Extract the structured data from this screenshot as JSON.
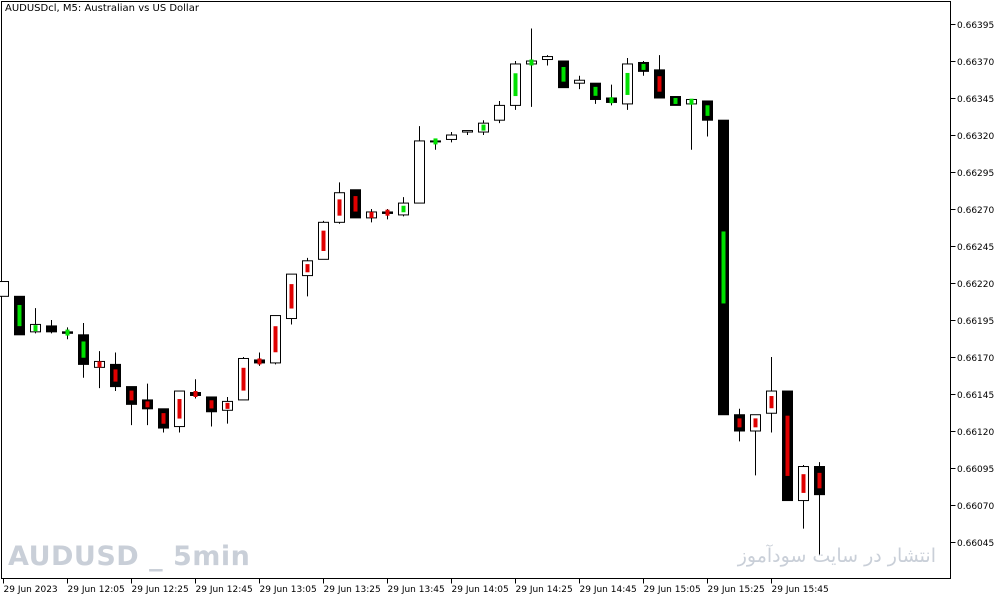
{
  "header": {
    "symbol": "AUDUSDcl",
    "timeframe": "M5",
    "description": "Australian vs US Dollar",
    "separator": ":  "
  },
  "watermarks": {
    "left": "AUDUSD _ 5min",
    "right": "انتشار در سایت سودآموز"
  },
  "colors": {
    "background": "#ffffff",
    "frame": "#000000",
    "bull_body": "#ffffff",
    "bear_body": "#000000",
    "marker_up": "#00e000",
    "marker_down": "#e00000",
    "watermark": "#c9cfd8"
  },
  "chart_data": {
    "type": "candlestick",
    "title": "AUDUSDcl, M5:  Australian vs US Dollar",
    "ylim": [
      0.66035,
      0.66415
    ],
    "y_ticks": [
      0.66395,
      0.6637,
      0.66345,
      0.6632,
      0.66295,
      0.6627,
      0.66245,
      0.6622,
      0.66195,
      0.6617,
      0.66145,
      0.6612,
      0.66095,
      0.6607,
      0.66045
    ],
    "x_ticks": [
      "29 Jun 2023",
      "29 Jun 12:05",
      "29 Jun 12:25",
      "29 Jun 12:45",
      "29 Jun 13:05",
      "29 Jun 13:25",
      "29 Jun 13:45",
      "29 Jun 14:05",
      "29 Jun 14:25",
      "29 Jun 14:45",
      "29 Jun 15:05",
      "29 Jun 15:25",
      "29 Jun 15:45"
    ],
    "candles": [
      {
        "o": 0.66211,
        "h": 0.66221,
        "l": 0.66211,
        "c": 0.66221,
        "m": "none"
      },
      {
        "o": 0.66211,
        "h": 0.66211,
        "l": 0.66185,
        "c": 0.66185,
        "m": "up"
      },
      {
        "o": 0.66187,
        "h": 0.66203,
        "l": 0.66186,
        "c": 0.66192,
        "m": "up"
      },
      {
        "o": 0.66191,
        "h": 0.66195,
        "l": 0.66186,
        "c": 0.66187,
        "m": "none"
      },
      {
        "o": 0.66187,
        "h": 0.6619,
        "l": 0.66182,
        "c": 0.66186,
        "m": "up"
      },
      {
        "o": 0.66185,
        "h": 0.66193,
        "l": 0.66156,
        "c": 0.66165,
        "m": "up"
      },
      {
        "o": 0.66163,
        "h": 0.66174,
        "l": 0.66149,
        "c": 0.66167,
        "m": "down"
      },
      {
        "o": 0.66165,
        "h": 0.66173,
        "l": 0.66147,
        "c": 0.6615,
        "m": "down"
      },
      {
        "o": 0.6615,
        "h": 0.6615,
        "l": 0.66124,
        "c": 0.66138,
        "m": "down"
      },
      {
        "o": 0.66141,
        "h": 0.66152,
        "l": 0.66124,
        "c": 0.66135,
        "m": "down"
      },
      {
        "o": 0.66135,
        "h": 0.66135,
        "l": 0.66119,
        "c": 0.66122,
        "m": "down"
      },
      {
        "o": 0.66123,
        "h": 0.66147,
        "l": 0.66119,
        "c": 0.66147,
        "m": "down"
      },
      {
        "o": 0.66146,
        "h": 0.66155,
        "l": 0.66142,
        "c": 0.66144,
        "m": "down"
      },
      {
        "o": 0.66143,
        "h": 0.66143,
        "l": 0.66123,
        "c": 0.66133,
        "m": "down"
      },
      {
        "o": 0.66134,
        "h": 0.66143,
        "l": 0.66125,
        "c": 0.6614,
        "m": "down"
      },
      {
        "o": 0.66141,
        "h": 0.6617,
        "l": 0.66141,
        "c": 0.66169,
        "m": "down"
      },
      {
        "o": 0.66168,
        "h": 0.66173,
        "l": 0.66164,
        "c": 0.66166,
        "m": "down"
      },
      {
        "o": 0.66166,
        "h": 0.66198,
        "l": 0.66165,
        "c": 0.66198,
        "m": "down"
      },
      {
        "o": 0.66196,
        "h": 0.66226,
        "l": 0.66192,
        "c": 0.66226,
        "m": "down"
      },
      {
        "o": 0.66225,
        "h": 0.66237,
        "l": 0.66211,
        "c": 0.66235,
        "m": "down"
      },
      {
        "o": 0.66236,
        "h": 0.66262,
        "l": 0.66236,
        "c": 0.66261,
        "m": "down"
      },
      {
        "o": 0.66261,
        "h": 0.66288,
        "l": 0.6626,
        "c": 0.66281,
        "m": "down"
      },
      {
        "o": 0.66283,
        "h": 0.66283,
        "l": 0.66264,
        "c": 0.66264,
        "m": "down"
      },
      {
        "o": 0.66264,
        "h": 0.6627,
        "l": 0.66261,
        "c": 0.66268,
        "m": "down"
      },
      {
        "o": 0.66268,
        "h": 0.6627,
        "l": 0.66263,
        "c": 0.66267,
        "m": "down"
      },
      {
        "o": 0.66266,
        "h": 0.66278,
        "l": 0.66265,
        "c": 0.66274,
        "m": "up"
      },
      {
        "o": 0.66274,
        "h": 0.66326,
        "l": 0.66274,
        "c": 0.66316,
        "m": "none"
      },
      {
        "o": 0.66316,
        "h": 0.66317,
        "l": 0.6631,
        "c": 0.66316,
        "m": "up"
      },
      {
        "o": 0.66317,
        "h": 0.66322,
        "l": 0.66315,
        "c": 0.6632,
        "m": "none"
      },
      {
        "o": 0.66322,
        "h": 0.66323,
        "l": 0.6632,
        "c": 0.66323,
        "m": "none"
      },
      {
        "o": 0.66322,
        "h": 0.6633,
        "l": 0.6632,
        "c": 0.66328,
        "m": "up"
      },
      {
        "o": 0.6633,
        "h": 0.66343,
        "l": 0.66328,
        "c": 0.6634,
        "m": "none"
      },
      {
        "o": 0.6634,
        "h": 0.6637,
        "l": 0.66337,
        "c": 0.66368,
        "m": "up"
      },
      {
        "o": 0.66368,
        "h": 0.66392,
        "l": 0.66339,
        "c": 0.6637,
        "m": "up"
      },
      {
        "o": 0.66371,
        "h": 0.66374,
        "l": 0.66367,
        "c": 0.66373,
        "m": "none"
      },
      {
        "o": 0.6637,
        "h": 0.6637,
        "l": 0.66352,
        "c": 0.66352,
        "m": "up"
      },
      {
        "o": 0.66355,
        "h": 0.6636,
        "l": 0.66351,
        "c": 0.66357,
        "m": "none"
      },
      {
        "o": 0.66355,
        "h": 0.66355,
        "l": 0.66341,
        "c": 0.66344,
        "m": "up"
      },
      {
        "o": 0.66345,
        "h": 0.66354,
        "l": 0.6634,
        "c": 0.66342,
        "m": "up"
      },
      {
        "o": 0.66341,
        "h": 0.66372,
        "l": 0.66337,
        "c": 0.66368,
        "m": "up"
      },
      {
        "o": 0.66369,
        "h": 0.6637,
        "l": 0.6636,
        "c": 0.66363,
        "m": "up"
      },
      {
        "o": 0.66364,
        "h": 0.66374,
        "l": 0.66345,
        "c": 0.66345,
        "m": "down"
      },
      {
        "o": 0.66346,
        "h": 0.66346,
        "l": 0.6634,
        "c": 0.6634,
        "m": "up"
      },
      {
        "o": 0.66341,
        "h": 0.66344,
        "l": 0.6631,
        "c": 0.66344,
        "m": "up"
      },
      {
        "o": 0.66343,
        "h": 0.66343,
        "l": 0.66319,
        "c": 0.6633,
        "m": "up"
      },
      {
        "o": 0.6633,
        "h": 0.6633,
        "l": 0.66131,
        "c": 0.66131,
        "m": "up"
      },
      {
        "o": 0.66131,
        "h": 0.66135,
        "l": 0.66113,
        "c": 0.6612,
        "m": "down"
      },
      {
        "o": 0.6612,
        "h": 0.66131,
        "l": 0.6609,
        "c": 0.66131,
        "m": "down"
      },
      {
        "o": 0.66132,
        "h": 0.6617,
        "l": 0.66119,
        "c": 0.66147,
        "m": "down"
      },
      {
        "o": 0.66147,
        "h": 0.66147,
        "l": 0.66073,
        "c": 0.66073,
        "m": "down"
      },
      {
        "o": 0.66073,
        "h": 0.66097,
        "l": 0.66054,
        "c": 0.66096,
        "m": "down"
      },
      {
        "o": 0.66096,
        "h": 0.66099,
        "l": 0.66036,
        "c": 0.66077,
        "m": "down"
      }
    ]
  }
}
